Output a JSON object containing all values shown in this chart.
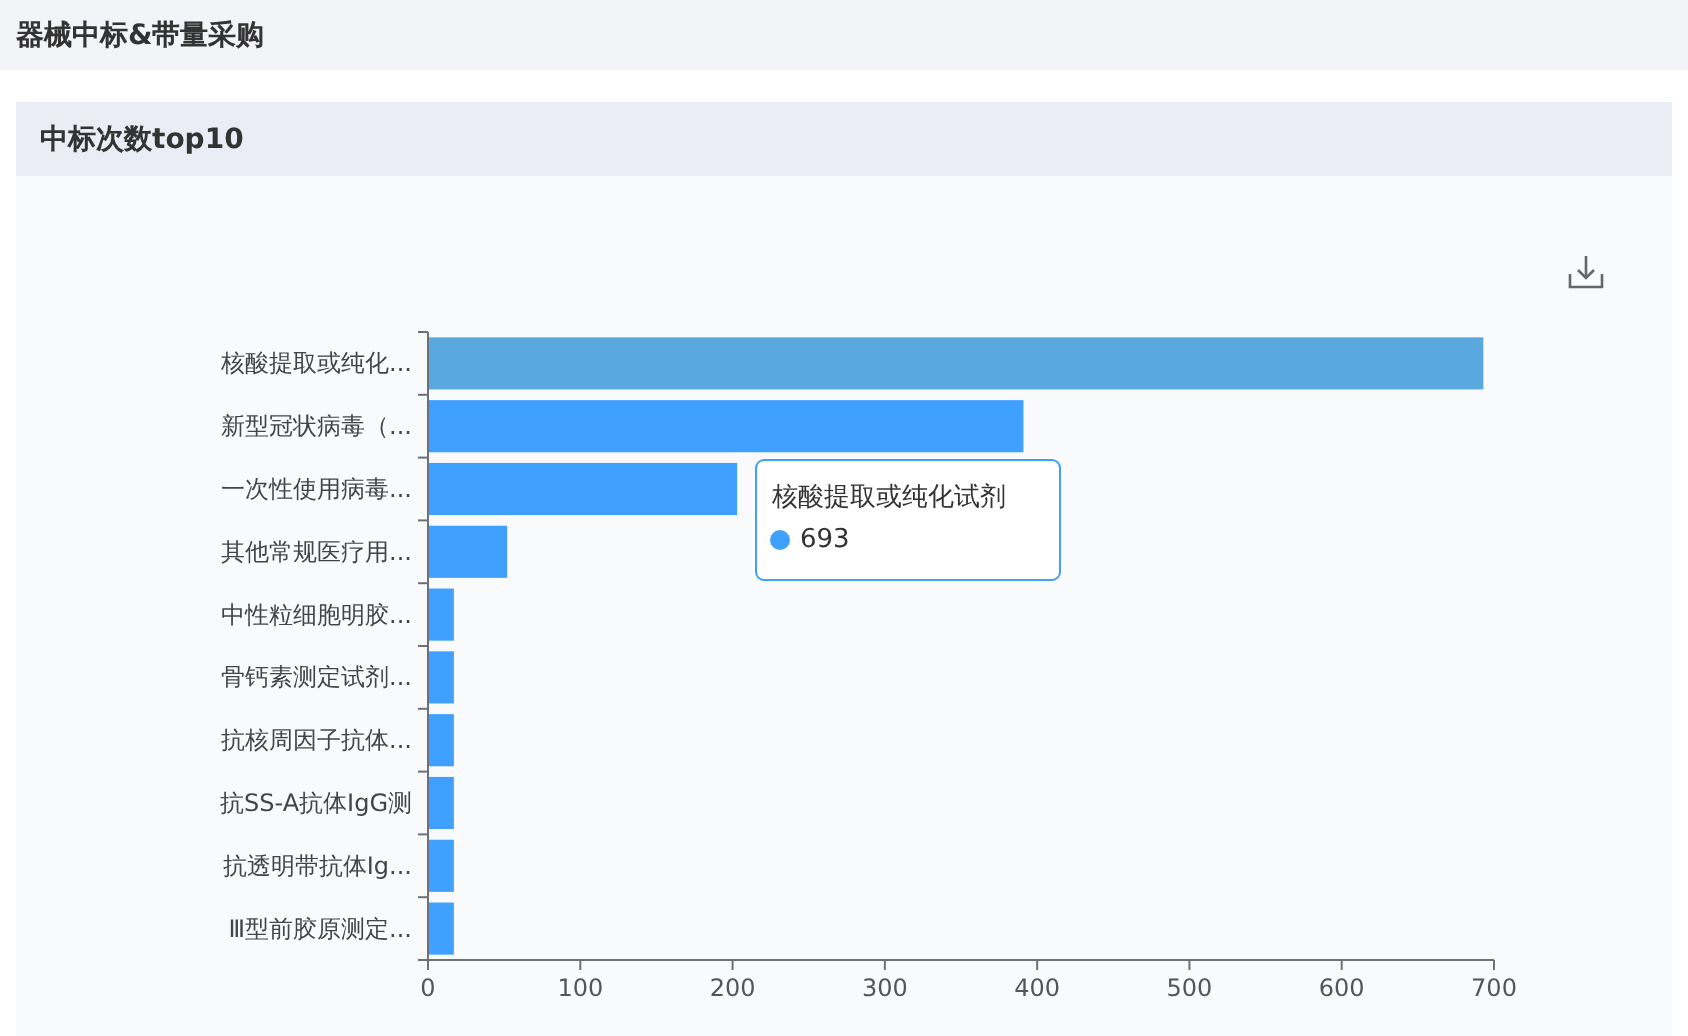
{
  "chart_data": {
    "type": "bar",
    "orientation": "horizontal",
    "title": "器械中标&带量采购",
    "subtitle": "中标次数top10",
    "categories": [
      "核酸提取或纯化...",
      "新型冠状病毒（...",
      "一次性使用病毒...",
      "其他常规医疗用...",
      "中性粒细胞明胶...",
      "骨钙素测定试剂...",
      "抗核周因子抗体...",
      "抗SS-A抗体IgG测",
      "抗透明带抗体Ig...",
      "Ⅲ型前胶原测定..."
    ],
    "values": [
      693,
      391,
      203,
      52,
      17,
      17,
      17,
      17,
      17,
      17
    ],
    "colors": [
      "#5aa9de",
      "#3fa0ff",
      "#3fa0ff",
      "#3fa0ff",
      "#3fa0ff",
      "#3fa0ff",
      "#3fa0ff",
      "#3fa0ff",
      "#3fa0ff",
      "#3fa0ff"
    ],
    "xlim": [
      0,
      700
    ],
    "xticks": [
      0,
      100,
      200,
      300,
      400,
      500,
      600,
      700
    ],
    "annotations": [
      "核酸提取或纯化试剂",
      "693"
    ]
  }
}
